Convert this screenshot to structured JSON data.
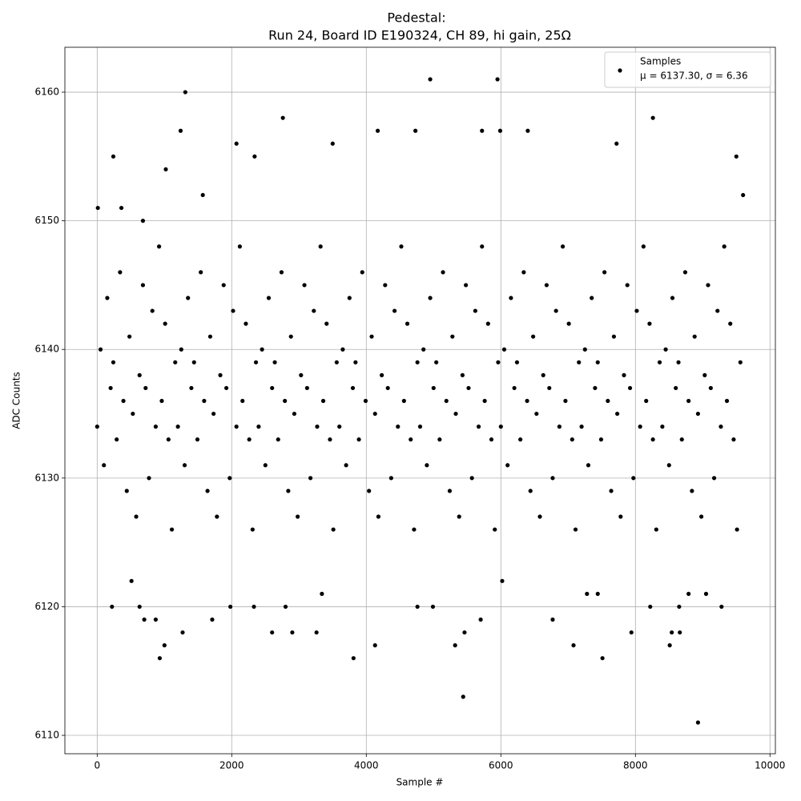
{
  "chart_data": {
    "type": "scatter",
    "title": "Pedestal:",
    "subtitle": "Run 24, Board ID E190324, CH 89, hi gain, 25Ω",
    "x_label": "Sample #",
    "y_label": "ADC Counts",
    "legend_annotation": "μ = 6137.30, σ = 6.36",
    "legend": "upper right",
    "grid": true,
    "xlim": [
      -480,
      10080
    ],
    "ylim": [
      6108.57,
      6163.49
    ],
    "xticks": [
      0,
      2000,
      4000,
      6000,
      8000,
      10000
    ],
    "yticks": [
      6110,
      6120,
      6130,
      6140,
      6150,
      6160
    ],
    "x": [
      0,
      50,
      100,
      150,
      200,
      240,
      290,
      340,
      390,
      440,
      480,
      530,
      580,
      630,
      680,
      720,
      770,
      820,
      870,
      920,
      960,
      1010,
      1060,
      1110,
      1160,
      1200,
      1250,
      1300,
      1350,
      1400,
      1440,
      1490,
      1540,
      1590,
      1640,
      1680,
      1730,
      1780,
      1830,
      1880,
      1920,
      1970,
      2020,
      2070,
      2120,
      2160,
      2210,
      2260,
      2310,
      2360,
      2400,
      2450,
      2500,
      2550,
      2600,
      2640,
      2690,
      2740,
      2790,
      2840,
      2880,
      2930,
      2980,
      3030,
      3080,
      3120,
      3170,
      3220,
      3270,
      3320,
      3360,
      3410,
      3460,
      3510,
      3560,
      3600,
      3650,
      3700,
      3750,
      3800,
      3840,
      3890,
      3940,
      3990,
      4040,
      4080,
      4130,
      4180,
      4230,
      4280,
      4320,
      4370,
      4420,
      4470,
      4520,
      4560,
      4610,
      4660,
      4710,
      4760,
      4800,
      4850,
      4900,
      4950,
      5000,
      5040,
      5090,
      5140,
      5190,
      5240,
      5280,
      5330,
      5380,
      5430,
      5480,
      5520,
      5570,
      5620,
      5670,
      5720,
      5760,
      5810,
      5860,
      5910,
      5960,
      6000,
      6050,
      6100,
      6150,
      6200,
      6240,
      6290,
      6340,
      6390,
      6440,
      6480,
      6530,
      6580,
      6630,
      6680,
      6720,
      6770,
      6820,
      6870,
      6920,
      6960,
      7010,
      7060,
      7110,
      7160,
      7200,
      7250,
      7300,
      7350,
      7400,
      7440,
      7490,
      7540,
      7590,
      7640,
      7680,
      7730,
      7780,
      7830,
      7880,
      7920,
      7970,
      8020,
      8070,
      8120,
      8160,
      8210,
      8260,
      8310,
      8360,
      8400,
      8450,
      8500,
      8550,
      8600,
      8640,
      8690,
      8740,
      8790,
      8840,
      8880,
      8930,
      8980,
      9030,
      9080,
      9120,
      9170,
      9220,
      9270,
      9320,
      9360,
      9410,
      9460,
      9510,
      9560,
      10,
      240,
      1020,
      1310,
      1240,
      930,
      1000,
      1270,
      1710,
      2070,
      2760,
      2600,
      2900,
      3260,
      3810,
      4130,
      4170,
      4950,
      5950,
      5440,
      5320,
      5460,
      6020,
      7080,
      7510,
      7720,
      7940,
      8260,
      8510,
      8930,
      8540,
      8660,
      6400,
      5720,
      5990,
      9280,
      9500,
      9600,
      4730,
      4760,
      4990,
      3500,
      2340,
      1570,
      680,
      360,
      510,
      630,
      700,
      870,
      1980,
      2330,
      2800,
      3340,
      5700,
      6770,
      8220,
      8650,
      8790,
      9050,
      7280,
      7440,
      220
    ],
    "series": [
      {
        "name": "Samples",
        "color": "#000000",
        "values": [
          6134,
          6140,
          6131,
          6144,
          6137,
          6139,
          6133,
          6146,
          6136,
          6129,
          6141,
          6135,
          6127,
          6138,
          6145,
          6137,
          6130,
          6143,
          6134,
          6148,
          6136,
          6142,
          6133,
          6126,
          6139,
          6134,
          6140,
          6131,
          6144,
          6137,
          6139,
          6133,
          6146,
          6136,
          6129,
          6141,
          6135,
          6127,
          6138,
          6145,
          6137,
          6130,
          6143,
          6134,
          6148,
          6136,
          6142,
          6133,
          6126,
          6139,
          6134,
          6140,
          6131,
          6144,
          6137,
          6139,
          6133,
          6146,
          6136,
          6129,
          6141,
          6135,
          6127,
          6138,
          6145,
          6137,
          6130,
          6143,
          6134,
          6148,
          6136,
          6142,
          6133,
          6126,
          6139,
          6134,
          6140,
          6131,
          6144,
          6137,
          6139,
          6133,
          6146,
          6136,
          6129,
          6141,
          6135,
          6127,
          6138,
          6145,
          6137,
          6130,
          6143,
          6134,
          6148,
          6136,
          6142,
          6133,
          6126,
          6139,
          6134,
          6140,
          6131,
          6144,
          6137,
          6139,
          6133,
          6146,
          6136,
          6129,
          6141,
          6135,
          6127,
          6138,
          6145,
          6137,
          6130,
          6143,
          6134,
          6148,
          6136,
          6142,
          6133,
          6126,
          6139,
          6134,
          6140,
          6131,
          6144,
          6137,
          6139,
          6133,
          6146,
          6136,
          6129,
          6141,
          6135,
          6127,
          6138,
          6145,
          6137,
          6130,
          6143,
          6134,
          6148,
          6136,
          6142,
          6133,
          6126,
          6139,
          6134,
          6140,
          6131,
          6144,
          6137,
          6139,
          6133,
          6146,
          6136,
          6129,
          6141,
          6135,
          6127,
          6138,
          6145,
          6137,
          6130,
          6143,
          6134,
          6148,
          6136,
          6142,
          6133,
          6126,
          6139,
          6134,
          6140,
          6131,
          6144,
          6137,
          6139,
          6133,
          6146,
          6136,
          6129,
          6141,
          6135,
          6127,
          6138,
          6145,
          6137,
          6130,
          6143,
          6134,
          6148,
          6136,
          6142,
          6133,
          6126,
          6139,
          6151,
          6155,
          6154,
          6160,
          6157,
          6116,
          6117,
          6118,
          6119,
          6156,
          6158,
          6118,
          6118,
          6118,
          6116,
          6117,
          6157,
          6161,
          6161,
          6113,
          6117,
          6118,
          6122,
          6117,
          6116,
          6156,
          6118,
          6158,
          6117,
          6111,
          6118,
          6118,
          6157,
          6157,
          6157,
          6120,
          6155,
          6152,
          6157,
          6120,
          6120,
          6156,
          6155,
          6152,
          6150,
          6151,
          6122,
          6120,
          6119,
          6119,
          6120,
          6120,
          6120,
          6121,
          6119,
          6119,
          6120,
          6120,
          6121,
          6121,
          6121,
          6121,
          6120
        ]
      }
    ]
  }
}
